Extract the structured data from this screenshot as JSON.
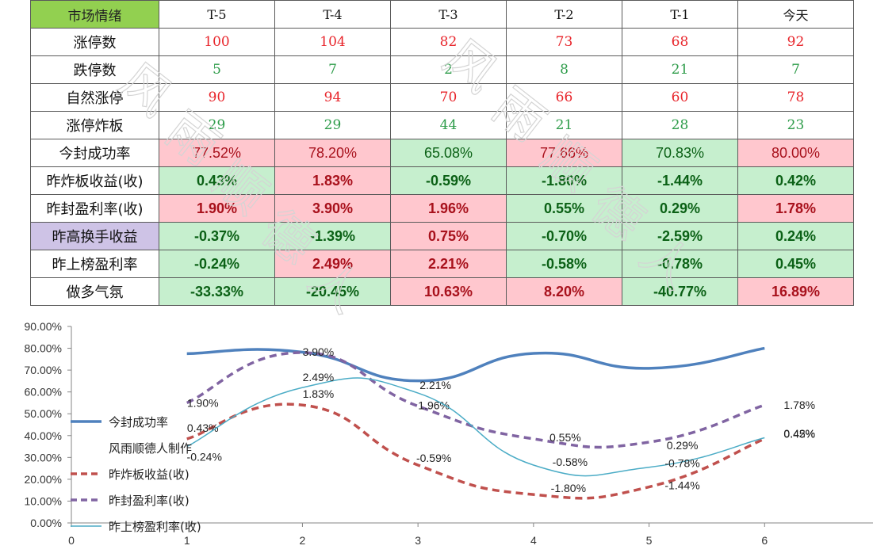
{
  "table": {
    "corner_label": "市场情绪",
    "columns": [
      "T-5",
      "T-4",
      "T-3",
      "T-2",
      "T-1",
      "今天"
    ],
    "rows": [
      {
        "label": "涨停数",
        "cells": [
          "100",
          "104",
          "82",
          "73",
          "68",
          "92"
        ]
      },
      {
        "label": "跌停数",
        "cells": [
          "5",
          "7",
          "2",
          "8",
          "21",
          "7"
        ]
      },
      {
        "label": "自然涨停",
        "cells": [
          "90",
          "94",
          "70",
          "66",
          "60",
          "78"
        ]
      },
      {
        "label": "涨停炸板",
        "cells": [
          "29",
          "29",
          "44",
          "21",
          "28",
          "23"
        ]
      },
      {
        "label": "今封成功率",
        "cells": [
          "77.52%",
          "78.20%",
          "65.08%",
          "77.66%",
          "70.83%",
          "80.00%"
        ]
      },
      {
        "label": "昨炸板收益(收)",
        "cells": [
          "0.43%",
          "1.83%",
          "-0.59%",
          "-1.80%",
          "-1.44%",
          "0.42%"
        ]
      },
      {
        "label": "昨封盈利率(收)",
        "cells": [
          "1.90%",
          "3.90%",
          "1.96%",
          "0.55%",
          "0.29%",
          "1.78%"
        ]
      },
      {
        "label": "昨高换手收益",
        "cells": [
          "-0.37%",
          "-1.39%",
          "0.75%",
          "-0.70%",
          "-2.59%",
          "0.24%"
        ]
      },
      {
        "label": "昨上榜盈利率",
        "cells": [
          "-0.24%",
          "2.49%",
          "2.21%",
          "-0.58%",
          "-0.78%",
          "0.45%"
        ]
      },
      {
        "label": "做多气氛",
        "cells": [
          "-33.33%",
          "-20.45%",
          "10.63%",
          "8.20%",
          "-40.77%",
          "16.89%"
        ]
      }
    ]
  },
  "watermark": "风雨顺德人",
  "colors": {
    "header_green": "#92d050",
    "up_text": "#e8252b",
    "down_text": "#2e9c4a",
    "pos_fill": "#ffc7ce",
    "pos_text": "#a8111c",
    "neg_fill": "#c6efce",
    "neg_text": "#0b6116",
    "label_purple": "#cec3e6"
  },
  "chart_data": {
    "type": "line",
    "x": [
      1,
      2,
      3,
      4,
      5,
      6
    ],
    "xlim": [
      0,
      7
    ],
    "x_ticks": [
      0,
      1,
      2,
      3,
      4,
      5,
      6
    ],
    "ylim": [
      0,
      90
    ],
    "y_ticks": [
      "0.00%",
      "10.00%",
      "20.00%",
      "30.00%",
      "40.00%",
      "50.00%",
      "60.00%",
      "70.00%",
      "80.00%",
      "90.00%"
    ],
    "smooth": true,
    "series": [
      {
        "name": "今封成功率",
        "values": [
          77.52,
          78.2,
          65.08,
          77.66,
          70.83,
          80.0
        ],
        "color": "#4f81bd",
        "style": "solid-thick",
        "labels": []
      },
      {
        "name": "昨炸板收益(收)",
        "values": [
          38.5,
          54.0,
          26.5,
          13.0,
          16.5,
          38.5
        ],
        "color": "#c0504d",
        "style": "dashed",
        "labels": [
          "0.43%",
          "1.83%",
          "-0.59%",
          "-1.80%",
          "-1.44%",
          "0.42%"
        ]
      },
      {
        "name": "昨封盈利率(收)",
        "values": [
          55.0,
          78.0,
          53.5,
          38.5,
          37.0,
          54.0
        ],
        "color": "#8064a2",
        "style": "dashed",
        "labels": [
          "1.90%",
          "3.90%",
          "1.96%",
          "0.55%",
          "0.29%",
          "1.78%"
        ]
      },
      {
        "name": "昨上榜盈利率(收)",
        "values": [
          35.0,
          62.0,
          59.5,
          26.5,
          25.5,
          39.0
        ],
        "color": "#4bacc6",
        "style": "solid-thin",
        "labels": [
          "-0.24%",
          "2.49%",
          "2.21%",
          "-0.58%",
          "-0.78%",
          "0.45%"
        ]
      }
    ],
    "legend": {
      "placement": "left-inside",
      "note": "风雨顺德人制作"
    }
  }
}
